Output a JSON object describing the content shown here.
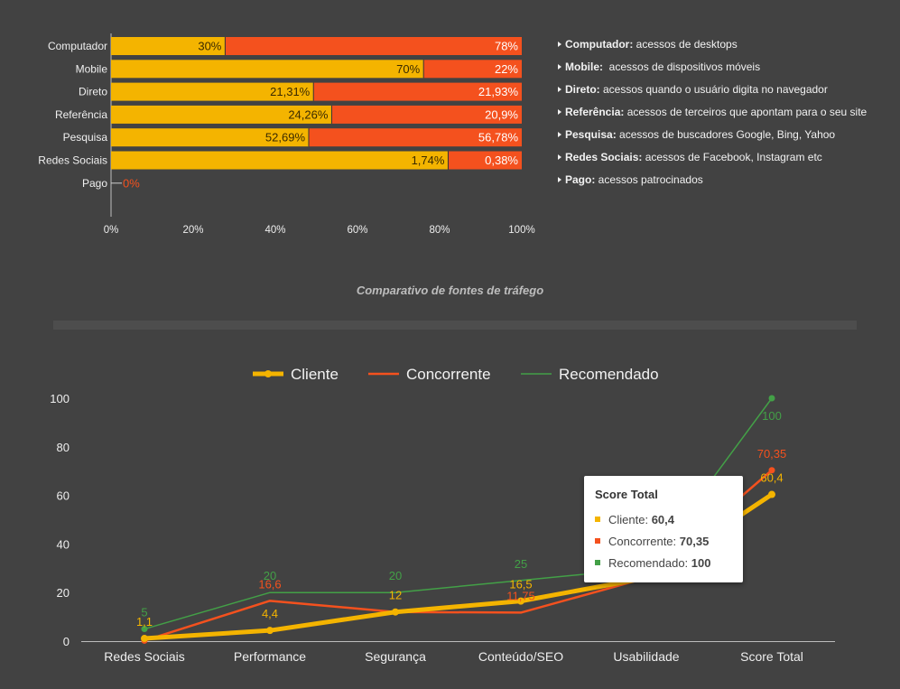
{
  "legend_items": [
    {
      "term": "Computador:",
      "desc": "acessos de desktops"
    },
    {
      "term": "Mobile:",
      "desc": " acessos de dispositivos móveis"
    },
    {
      "term": "Direto:",
      "desc": "acessos quando o usuário digita no navegador"
    },
    {
      "term": "Referência:",
      "desc": "acessos de terceiros que apontam para o seu site"
    },
    {
      "term": "Pesquisa:",
      "desc": "acessos de buscadores Google, Bing, Yahoo"
    },
    {
      "term": "Redes Sociais:",
      "desc": "acessos de Facebook, Instagram etc"
    },
    {
      "term": "Pago:",
      "desc": "acessos patrocinados"
    }
  ],
  "section_title": "Comparativo de fontes de tráfego",
  "tooltip": {
    "title": "Score Total",
    "rows": [
      {
        "label": "Cliente: ",
        "value": "60,4",
        "color": "#f4b400"
      },
      {
        "label": "Concorrente: ",
        "value": "70,35",
        "color": "#f4511e"
      },
      {
        "label": "Recomendado: ",
        "value": "100",
        "color": "#43a047"
      }
    ]
  },
  "chart_data": [
    {
      "type": "bar",
      "stacked": "percent",
      "categories": [
        "Computador",
        "Mobile",
        "Direto",
        "Referência",
        "Pesquisa",
        "Redes Sociais",
        "Pago"
      ],
      "series": [
        {
          "values": [
            30,
            70,
            21.31,
            24.26,
            52.69,
            1.74,
            0
          ],
          "labels": [
            "30%",
            "70%",
            "21,31%",
            "24,26%",
            "52,69%",
            "1,74%",
            ""
          ],
          "color": "#f4b400"
        },
        {
          "values": [
            78,
            22,
            21.93,
            20.9,
            56.78,
            0.38,
            0
          ],
          "labels": [
            "78%",
            "22%",
            "21,93%",
            "20,9%",
            "56,78%",
            "0,38%",
            "0%"
          ],
          "color": "#f4511e"
        }
      ],
      "xticks": [
        "0%",
        "20%",
        "40%",
        "60%",
        "80%",
        "100%"
      ],
      "xlim": [
        0,
        100
      ]
    },
    {
      "type": "line",
      "categories": [
        "Redes Sociais",
        "Performance",
        "Segurança",
        "Conteúdo/SEO",
        "Usabilidade",
        "Score Total"
      ],
      "series": [
        {
          "name": "Cliente",
          "values": [
            1.1,
            4.4,
            12,
            16.5,
            26,
            60.4
          ],
          "labels": [
            "1,1",
            "4,4",
            "12",
            "16,5",
            "",
            "60,4"
          ],
          "color": "#f4b400"
        },
        {
          "name": "Concorrente",
          "values": [
            0.2,
            16.6,
            12,
            11.75,
            26,
            70.35
          ],
          "labels": [
            "",
            "16,6",
            "",
            "11,75",
            "",
            "70,35"
          ],
          "color": "#f4511e"
        },
        {
          "name": "Recomendado",
          "values": [
            5,
            20,
            20,
            25,
            30,
            100
          ],
          "labels": [
            "5",
            "20",
            "20",
            "25",
            "",
            "100"
          ],
          "color": "#43a047"
        }
      ],
      "yticks": [
        "0",
        "20",
        "40",
        "60",
        "80",
        "100"
      ],
      "ylim": [
        0,
        100
      ],
      "legend": "top"
    }
  ]
}
